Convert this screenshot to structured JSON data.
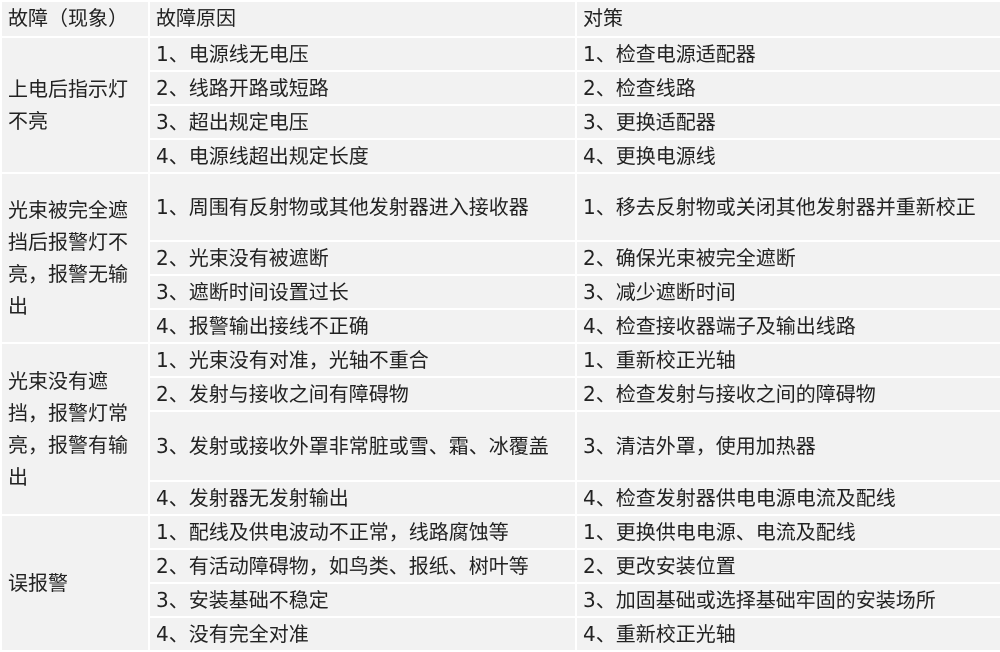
{
  "table": {
    "header": [
      "故障（现象）",
      "故障原因",
      "对策"
    ],
    "groups": [
      {
        "symptom": "上电后指示灯不亮",
        "rows": [
          {
            "cause": "1、电源线无电压",
            "remedy": "1、检查电源适配器"
          },
          {
            "cause": "2、线路开路或短路",
            "remedy": "2、检查线路"
          },
          {
            "cause": "3、超出规定电压",
            "remedy": "3、更换适配器"
          },
          {
            "cause": "4、电源线超出规定长度",
            "remedy": "4、更换电源线"
          }
        ]
      },
      {
        "symptom": "光束被完全遮挡后报警灯不亮，报警无输出",
        "rows": [
          {
            "cause": "1、周围有反射物或其他发射器进入接收器",
            "remedy": "1、移去反射物或关闭其他发射器并重新校正"
          },
          {
            "cause": "2、光束没有被遮断",
            "remedy": "2、确保光束被完全遮断"
          },
          {
            "cause": "3、遮断时间设置过长",
            "remedy": "3、减少遮断时间"
          },
          {
            "cause": "4、报警输出接线不正确",
            "remedy": "4、检查接收器端子及输出线路"
          }
        ]
      },
      {
        "symptom": "光束没有遮挡，报警灯常亮，报警有输出",
        "rows": [
          {
            "cause": "1、光束没有对准，光轴不重合",
            "remedy": "1、重新校正光轴"
          },
          {
            "cause": "2、发射与接收之间有障碍物",
            "remedy": "2、检查发射与接收之间的障碍物"
          },
          {
            "cause": "3、发射或接收外罩非常脏或雪、霜、冰覆盖",
            "remedy": "3、清洁外罩，使用加热器"
          },
          {
            "cause": "4、发射器无发射输出",
            "remedy": "4、检查发射器供电电源电流及配线"
          }
        ]
      },
      {
        "symptom": "误报警",
        "rows": [
          {
            "cause": "1、配线及供电波动不正常，线路腐蚀等",
            "remedy": "1、更换供电电源、电流及配线"
          },
          {
            "cause": "2、有活动障碍物，如鸟类、报纸、树叶等",
            "remedy": "2、更改安装位置"
          },
          {
            "cause": "3、安装基础不稳定",
            "remedy": "3、加固基础或选择基础牢固的安装场所"
          },
          {
            "cause": "4、没有完全对准",
            "remedy": "4、重新校正光轴"
          }
        ]
      }
    ]
  }
}
